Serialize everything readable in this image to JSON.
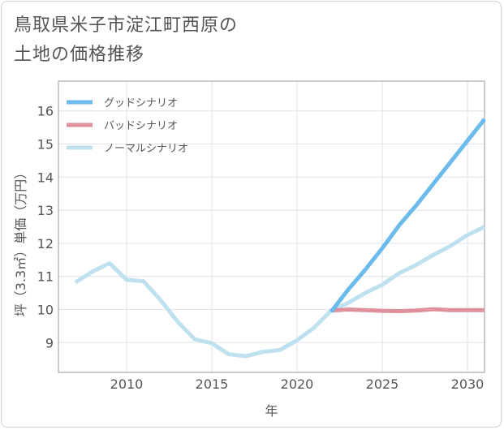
{
  "title_lines": [
    "鳥取県米子市淀江町西原の",
    "土地の価格推移"
  ],
  "chart_data": {
    "type": "line",
    "xlabel": "年",
    "ylabel": "坪（3.3㎡）単価（万円）",
    "xlim": [
      2006,
      2031
    ],
    "ylim": [
      8.1,
      16.9
    ],
    "x_ticks": [
      2010,
      2015,
      2020,
      2025,
      2030
    ],
    "y_ticks": [
      9,
      10,
      11,
      12,
      13,
      14,
      15,
      16
    ],
    "grid": true,
    "legend_position": "top-left",
    "series": [
      {
        "name": "グッドシナリオ",
        "color": "#6cbbec",
        "x": [
          2022,
          2023,
          2024,
          2025,
          2026,
          2027,
          2028,
          2029,
          2030,
          2031
        ],
        "values": [
          9.93,
          10.6,
          11.2,
          11.85,
          12.55,
          13.15,
          13.8,
          14.45,
          15.1,
          15.75
        ]
      },
      {
        "name": "バッドシナリオ",
        "color": "#e0909a",
        "x": [
          2022,
          2023,
          2024,
          2025,
          2026,
          2027,
          2028,
          2029,
          2030,
          2031
        ],
        "values": [
          9.97,
          10.0,
          9.98,
          9.96,
          9.95,
          9.97,
          10.01,
          9.98,
          9.98,
          9.98
        ]
      },
      {
        "name": "ノーマルシナリオ",
        "color": "#bfe0ee",
        "x": [
          2007,
          2008,
          2009,
          2010,
          2011,
          2012,
          2013,
          2014,
          2015,
          2016,
          2017,
          2018,
          2019,
          2020,
          2021,
          2022,
          2023,
          2024,
          2025,
          2026,
          2027,
          2028,
          2029,
          2030,
          2031
        ],
        "values": [
          10.82,
          11.15,
          11.4,
          10.9,
          10.85,
          10.28,
          9.63,
          9.1,
          8.98,
          8.65,
          8.59,
          8.72,
          8.78,
          9.07,
          9.45,
          9.97,
          10.2,
          10.5,
          10.75,
          11.1,
          11.35,
          11.65,
          11.92,
          12.25,
          12.5
        ]
      }
    ]
  }
}
